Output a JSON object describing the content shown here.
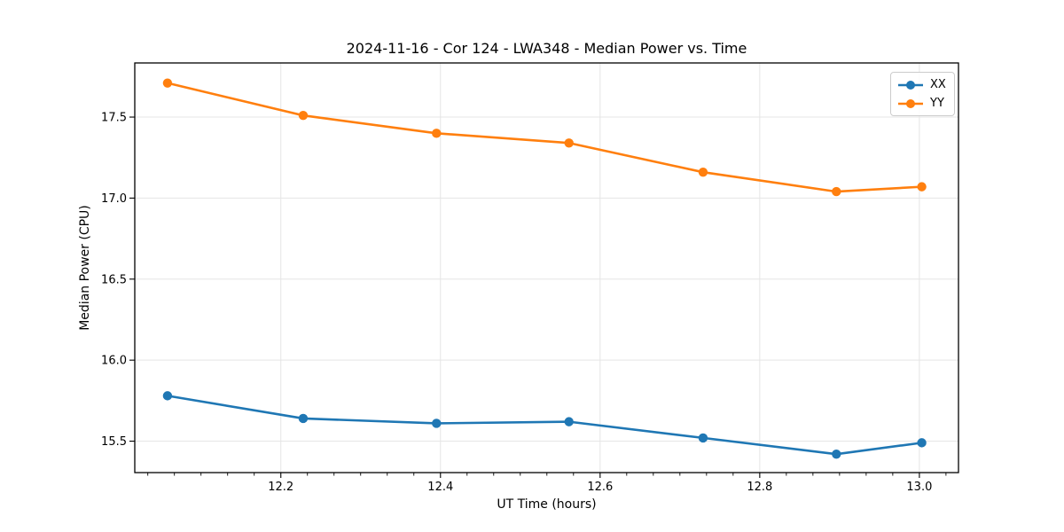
{
  "chart_data": {
    "type": "line",
    "title": "2024-11-16 - Cor 124 - LWA348 - Median Power vs. Time",
    "xlabel": "UT Time (hours)",
    "ylabel": "Median Power (CPU)",
    "x": [
      12.058,
      12.228,
      12.395,
      12.561,
      12.729,
      12.896,
      13.003
    ],
    "series": [
      {
        "name": "XX",
        "color": "#1f77b4",
        "values": [
          15.78,
          15.64,
          15.61,
          15.62,
          15.52,
          15.42,
          15.49
        ]
      },
      {
        "name": "YY",
        "color": "#ff7f0e",
        "values": [
          17.71,
          17.51,
          17.4,
          17.34,
          17.16,
          17.04,
          17.07
        ]
      }
    ],
    "xlim": [
      12.017,
      13.049
    ],
    "ylim": [
      15.306,
      17.834
    ],
    "xticks": [
      12.2,
      12.4,
      12.6,
      12.8,
      13.0
    ],
    "yticks": [
      15.5,
      16.0,
      16.5,
      17.0,
      17.5
    ],
    "x_minor_step": 0.0333333,
    "grid": true,
    "grid_color": "#e5e5e5",
    "axis_color": "#000000",
    "legend_position": "upper right",
    "marker": "o"
  }
}
